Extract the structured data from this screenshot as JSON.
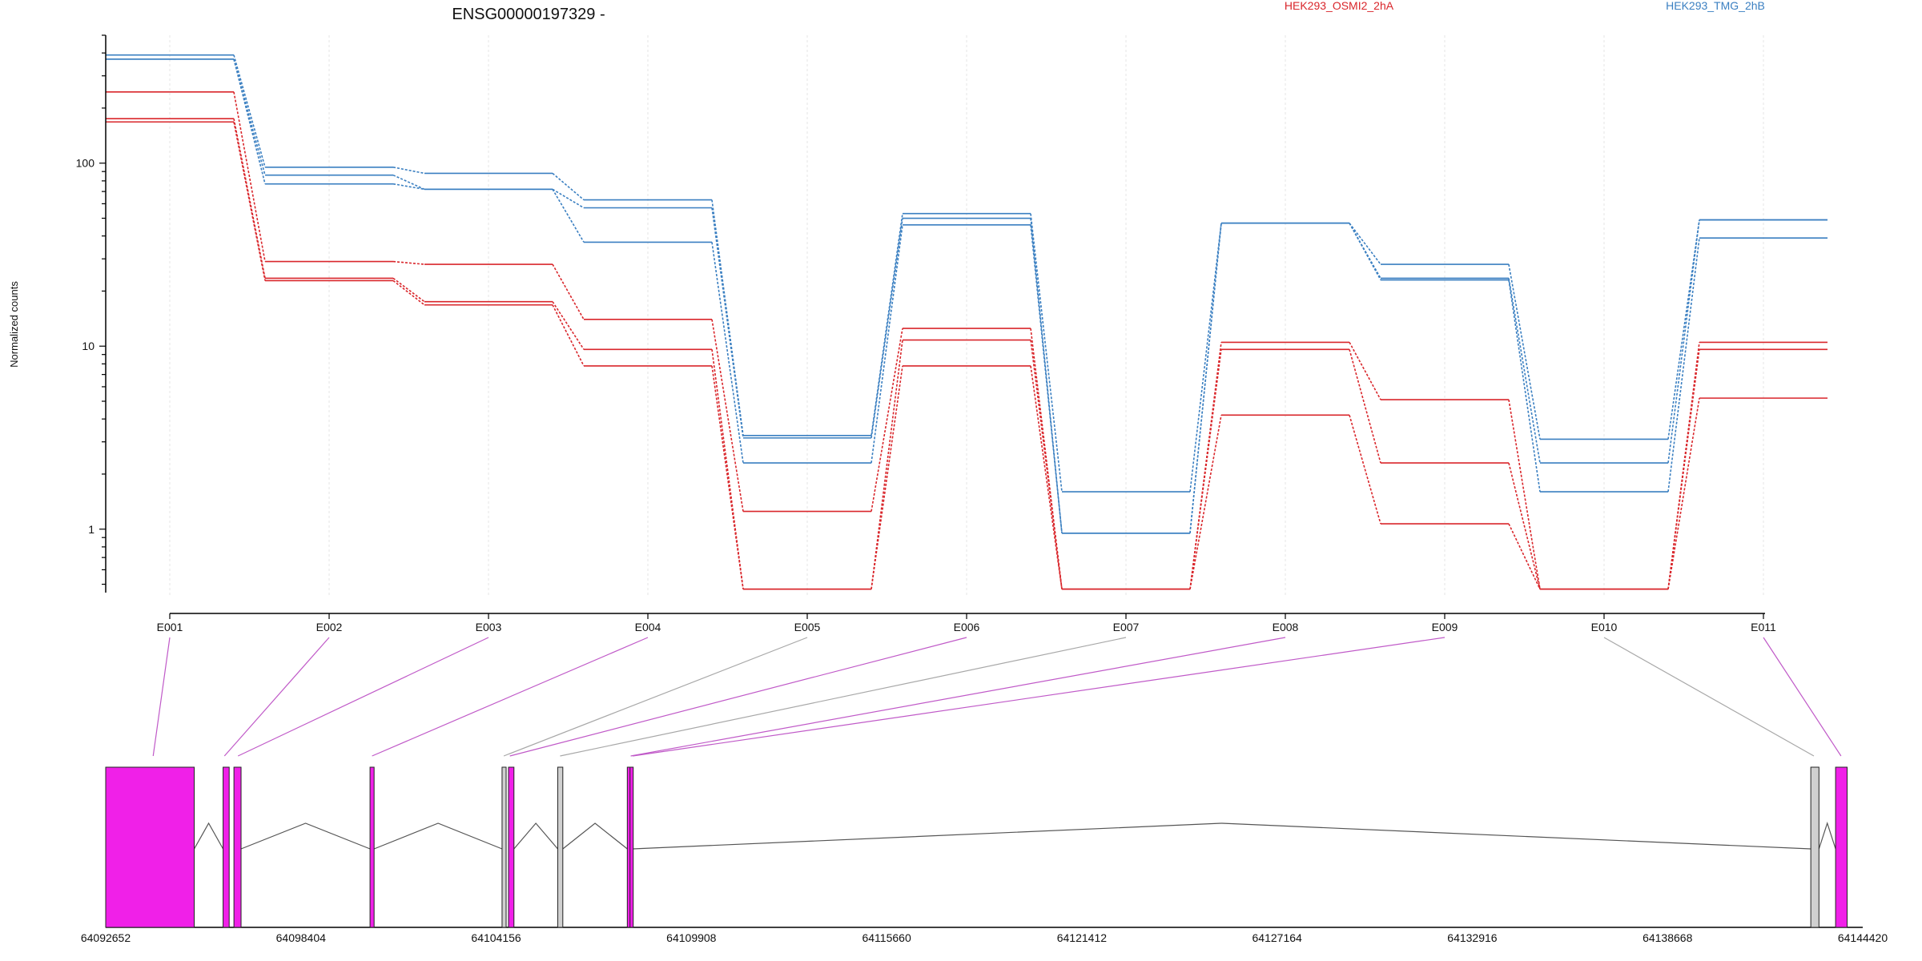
{
  "chart_data": [
    {
      "type": "line",
      "title": "ENSG00000197329 -",
      "ylabel": "Normalized counts",
      "yscale": "log",
      "ylim": [
        0.45,
        500
      ],
      "yticks": [
        1,
        10,
        100
      ],
      "ytick_labels": [
        "1",
        "10",
        "100"
      ],
      "categories": [
        "E001",
        "E002",
        "E003",
        "E004",
        "E005",
        "E006",
        "E007",
        "E008",
        "E009",
        "E010",
        "E011"
      ],
      "legend": [
        {
          "label": "HEK293_OSMI2_2hA",
          "color": "#d9262b"
        },
        {
          "label": "HEK293_TMG_2hB",
          "color": "#3a7fc1"
        }
      ],
      "series": [
        {
          "group": 1,
          "values": [
            390,
            95,
            88,
            63,
            3.25,
            53,
            1.6,
            47,
            28,
            3.1,
            49
          ]
        },
        {
          "group": 1,
          "values": [
            370,
            86,
            72,
            57,
            3.15,
            50,
            0.95,
            47,
            23.5,
            2.3,
            49
          ]
        },
        {
          "group": 1,
          "values": [
            370,
            77,
            72,
            37,
            2.3,
            46,
            0.95,
            47,
            23,
            1.6,
            39
          ]
        },
        {
          "group": 0,
          "values": [
            245,
            29,
            28,
            14,
            1.25,
            12.5,
            0.47,
            10.5,
            5.1,
            0.47,
            10.5
          ]
        },
        {
          "group": 0,
          "values": [
            175,
            23.5,
            17.5,
            9.6,
            0.47,
            10.8,
            0.47,
            9.6,
            2.3,
            0.47,
            9.6
          ]
        },
        {
          "group": 0,
          "values": [
            168,
            22.8,
            16.8,
            7.8,
            0.47,
            7.8,
            0.47,
            4.2,
            1.07,
            0.47,
            5.2
          ]
        }
      ]
    },
    {
      "type": "gene_model",
      "xlim": [
        64092652,
        64144420
      ],
      "xticks": [
        64092652,
        64098404,
        64104156,
        64109908,
        64115660,
        64121412,
        64127164,
        64132916,
        64138668,
        64144420
      ],
      "xtick_labels": [
        "64092652",
        "64098404",
        "64104156",
        "64109908",
        "64115660",
        "64121412",
        "64127164",
        "64132916",
        "64138668",
        "64144420"
      ],
      "colors": {
        "significant": "#f020e8",
        "not_significant": "#d0d0d0",
        "connector_sig": "#c05ac8",
        "connector_ns": "#a8a8a8"
      },
      "exons": [
        {
          "start": 64092652,
          "end": 64095260,
          "significant": true
        },
        {
          "start": 64096110,
          "end": 64096290,
          "significant": true
        },
        {
          "start": 64096430,
          "end": 64096640,
          "significant": true
        },
        {
          "start": 64100440,
          "end": 64100560,
          "significant": true
        },
        {
          "start": 64104330,
          "end": 64104450,
          "significant": false
        },
        {
          "start": 64104520,
          "end": 64104680,
          "significant": true
        },
        {
          "start": 64105970,
          "end": 64106120,
          "significant": false
        },
        {
          "start": 64108020,
          "end": 64108100,
          "significant": true
        },
        {
          "start": 64108100,
          "end": 64108180,
          "significant": true
        },
        {
          "start": 64142890,
          "end": 64143130,
          "significant": false
        },
        {
          "start": 64143620,
          "end": 64143960,
          "significant": true
        }
      ],
      "introns": [
        [
          64095260,
          64096110
        ],
        [
          64096640,
          64100440
        ],
        [
          64100560,
          64104330
        ],
        [
          64104680,
          64105970
        ],
        [
          64106120,
          64108020
        ],
        [
          64108180,
          64142890
        ],
        [
          64143130,
          64143620
        ]
      ],
      "connectors": [
        {
          "exon": "E001",
          "target": 64094050,
          "significant": true
        },
        {
          "exon": "E002",
          "target": 64096150,
          "significant": true
        },
        {
          "exon": "E003",
          "target": 64096550,
          "significant": true
        },
        {
          "exon": "E004",
          "target": 64100500,
          "significant": true
        },
        {
          "exon": "E005",
          "target": 64104380,
          "significant": false
        },
        {
          "exon": "E006",
          "target": 64104560,
          "significant": true
        },
        {
          "exon": "E007",
          "target": 64106040,
          "significant": false
        },
        {
          "exon": "E008",
          "target": 64108120,
          "significant": true
        },
        {
          "exon": "E009",
          "target": 64108180,
          "significant": true
        },
        {
          "exon": "E010",
          "target": 64142980,
          "significant": false
        },
        {
          "exon": "E011",
          "target": 64143780,
          "significant": true
        }
      ]
    }
  ]
}
